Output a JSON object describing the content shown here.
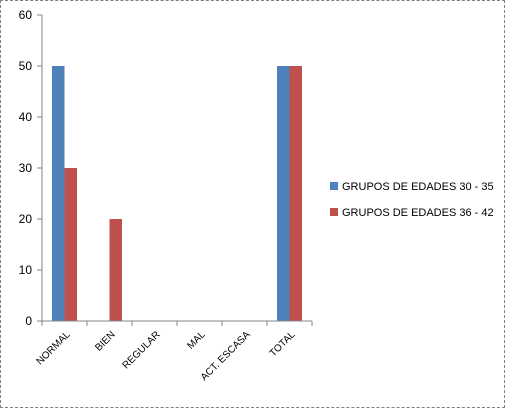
{
  "chart_data": {
    "type": "bar",
    "title": "",
    "xlabel": "",
    "ylabel": "",
    "categories": [
      "NORMAL",
      "BIEN",
      "REGULAR",
      "MAL",
      "ACT. ESCASA",
      "TOTAL"
    ],
    "series": [
      {
        "name": "GRUPOS DE EDADES 30 - 35",
        "values": [
          50,
          0,
          0,
          0,
          0,
          50
        ],
        "color": "#4f81bd"
      },
      {
        "name": "GRUPOS DE EDADES 36 - 42",
        "values": [
          30,
          20,
          0,
          0,
          0,
          50
        ],
        "color": "#c0504d"
      }
    ],
    "ylim": [
      0,
      60
    ],
    "yticks": [
      0,
      10,
      20,
      30,
      40,
      50,
      60
    ],
    "grid": false,
    "legend_position": "right"
  }
}
